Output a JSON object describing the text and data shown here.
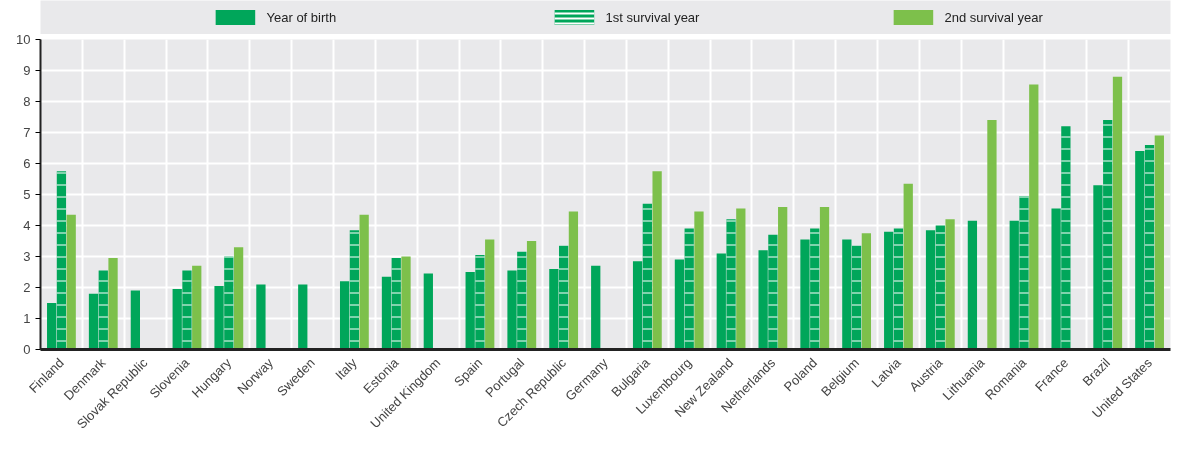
{
  "chart_data": {
    "type": "bar",
    "categories": [
      "Finland",
      "Denmark",
      "Slovak Republic",
      "Slovenia",
      "Hungary",
      "Norway",
      "Sweden",
      "Italy",
      "Estonia",
      "United Kingdom",
      "Spain",
      "Portugal",
      "Czech Republic",
      "Germany",
      "Bulgaria",
      "Luxembourg",
      "New Zealand",
      "Netherlands",
      "Poland",
      "Belgium",
      "Latvia",
      "Austria",
      "Lithuania",
      "Romania",
      "France",
      "Brazil",
      "United States"
    ],
    "series": [
      {
        "name": "Year of birth",
        "color": "#00a65a",
        "values": [
          1.5,
          1.8,
          1.9,
          1.95,
          2.05,
          2.1,
          2.1,
          2.2,
          2.35,
          2.45,
          2.5,
          2.55,
          2.6,
          2.7,
          2.85,
          2.9,
          3.1,
          3.2,
          3.55,
          3.55,
          3.8,
          3.85,
          4.15,
          4.15,
          4.55,
          5.3,
          6.4
        ]
      },
      {
        "name": "1st survival year",
        "color": "#00a65a",
        "values": [
          5.75,
          2.55,
          null,
          2.55,
          3.0,
          null,
          null,
          3.85,
          2.95,
          null,
          3.05,
          3.15,
          3.35,
          null,
          4.7,
          3.9,
          4.2,
          3.7,
          3.9,
          3.35,
          3.9,
          4.0,
          null,
          4.95,
          7.2,
          7.4,
          6.6
        ]
      },
      {
        "name": "2nd survival year",
        "color": "#7dc04b",
        "values": [
          4.35,
          2.95,
          null,
          2.7,
          3.3,
          null,
          null,
          4.35,
          3.0,
          null,
          3.55,
          3.5,
          4.45,
          null,
          5.75,
          4.45,
          4.55,
          4.6,
          4.6,
          3.75,
          5.35,
          4.2,
          7.4,
          8.55,
          null,
          8.8,
          6.9
        ]
      }
    ],
    "ylim": [
      0,
      10
    ],
    "yticks": [
      0,
      1,
      2,
      3,
      4,
      5,
      6,
      7,
      8,
      9,
      10
    ],
    "grid": true,
    "legend": "top"
  }
}
